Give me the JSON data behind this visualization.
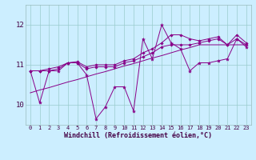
{
  "x": [
    0,
    1,
    2,
    3,
    4,
    5,
    6,
    7,
    8,
    9,
    10,
    11,
    12,
    13,
    14,
    15,
    16,
    17,
    18,
    19,
    20,
    21,
    22,
    23
  ],
  "y_volatile": [
    10.85,
    10.05,
    10.85,
    10.85,
    11.05,
    11.05,
    10.75,
    9.65,
    9.95,
    10.45,
    10.45,
    9.85,
    11.65,
    11.15,
    12.0,
    11.55,
    11.4,
    10.85,
    11.05,
    11.05,
    11.1,
    11.15,
    11.65,
    11.45
  ],
  "y_smooth1": [
    10.85,
    10.85,
    10.85,
    10.9,
    11.05,
    11.05,
    10.9,
    10.95,
    10.95,
    10.95,
    11.05,
    11.1,
    11.2,
    11.3,
    11.45,
    11.5,
    11.5,
    11.5,
    11.55,
    11.6,
    11.65,
    11.5,
    11.65,
    11.5
  ],
  "y_smooth2": [
    10.85,
    10.85,
    10.9,
    10.95,
    11.05,
    11.08,
    10.95,
    11.0,
    11.0,
    11.0,
    11.1,
    11.15,
    11.3,
    11.4,
    11.55,
    11.75,
    11.75,
    11.65,
    11.6,
    11.65,
    11.7,
    11.5,
    11.75,
    11.55
  ],
  "y_trend": [
    10.3,
    10.37,
    10.43,
    10.5,
    10.57,
    10.63,
    10.7,
    10.77,
    10.83,
    10.9,
    10.97,
    11.03,
    11.1,
    11.17,
    11.23,
    11.3,
    11.37,
    11.43,
    11.5,
    11.5,
    11.5,
    11.5,
    11.5,
    11.5
  ],
  "bg_color": "#cceeff",
  "line_color": "#880088",
  "grid_color": "#99cccc",
  "xlabel": "Windchill (Refroidissement éolien,°C)",
  "ylim": [
    9.5,
    12.5
  ],
  "xlim": [
    -0.5,
    23.5
  ]
}
